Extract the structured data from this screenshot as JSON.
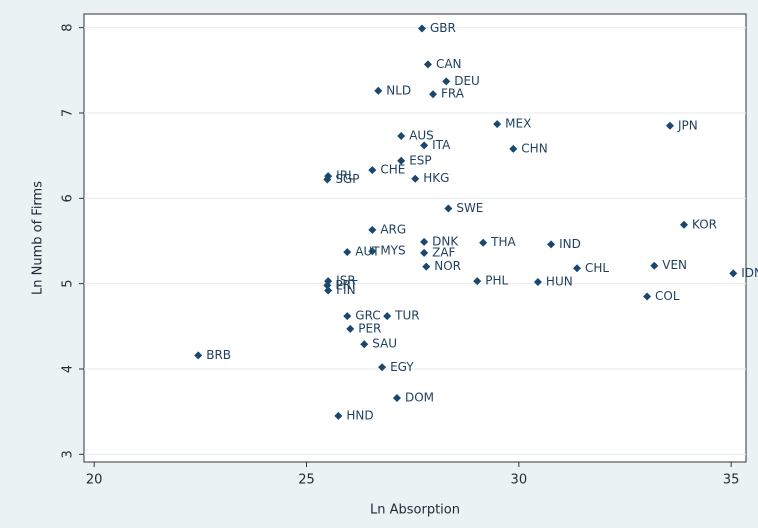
{
  "chart_data": {
    "type": "scatter",
    "x_label": "Ln Absorption",
    "y_label": "Ln Numb of Firms",
    "xlim": [
      19.76,
      35.35
    ],
    "ylim": [
      2.91,
      8.16
    ],
    "xticks": [
      20,
      25,
      30,
      35
    ],
    "yticks": [
      3,
      4,
      5,
      6,
      7,
      8
    ],
    "grid": true,
    "color": "#1a476f",
    "labels": [
      "GBR",
      "CAN",
      "DEU",
      "NLD",
      "FRA",
      "MEX",
      "JPN",
      "AUS",
      "ITA",
      "CHN",
      "ESP",
      "CHE",
      "IRL",
      "SGP",
      "HKG",
      "SWE",
      "KOR",
      "ARG",
      "DNK",
      "THA",
      "IND",
      "AUT",
      "MYS",
      "ZAF",
      "NOR",
      "CHL",
      "VEN",
      "IDN",
      "PHL",
      "HUN",
      "COL",
      "ISR",
      "PRT",
      "FIN",
      "GRC",
      "TUR",
      "PER",
      "SAU",
      "EGY",
      "BRB",
      "DOM",
      "HND"
    ],
    "x": [
      27.72,
      27.86,
      28.29,
      26.69,
      27.98,
      29.49,
      33.56,
      27.23,
      27.77,
      29.87,
      27.23,
      26.55,
      25.51,
      25.49,
      27.56,
      28.34,
      33.89,
      26.55,
      27.77,
      29.16,
      30.76,
      25.96,
      26.55,
      27.77,
      27.82,
      31.37,
      33.19,
      35.05,
      29.02,
      30.45,
      33.02,
      25.51,
      25.49,
      25.51,
      25.96,
      26.9,
      26.03,
      26.36,
      26.78,
      22.45,
      27.13,
      25.75
    ],
    "values": [
      7.99,
      7.57,
      7.37,
      7.26,
      7.22,
      6.87,
      6.85,
      6.73,
      6.62,
      6.58,
      6.44,
      6.33,
      6.26,
      6.22,
      6.23,
      5.88,
      5.69,
      5.63,
      5.49,
      5.48,
      5.46,
      5.37,
      5.38,
      5.36,
      5.2,
      5.18,
      5.21,
      5.12,
      5.03,
      5.02,
      4.85,
      5.03,
      4.98,
      4.92,
      4.62,
      4.62,
      4.47,
      4.29,
      4.02,
      4.16,
      3.66,
      3.45
    ]
  }
}
